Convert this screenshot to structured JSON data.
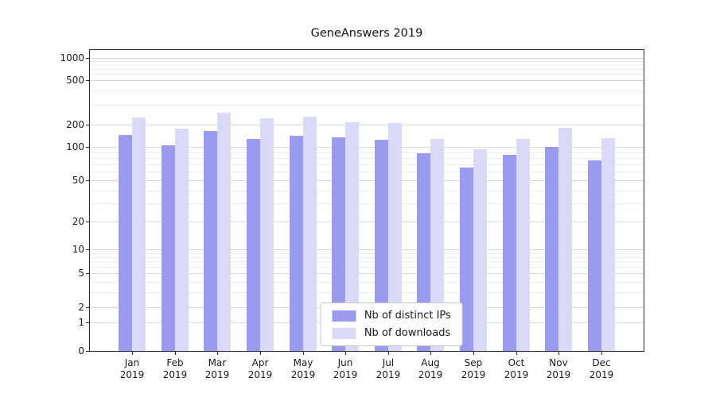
{
  "title": "GeneAnswers 2019",
  "chart_data": {
    "type": "bar",
    "title": "GeneAnswers 2019",
    "categories": [
      "Jan",
      "Feb",
      "Mar",
      "Apr",
      "May",
      "Jun",
      "Jul",
      "Aug",
      "Sep",
      "Oct",
      "Nov",
      "Dec"
    ],
    "year": "2019",
    "series": [
      {
        "name": "Nb of distinct IPs",
        "color": "#9a9aee",
        "values": [
          145,
          105,
          165,
          130,
          140,
          135,
          125,
          88,
          65,
          85,
          100,
          76
        ]
      },
      {
        "name": "Nb of downloads",
        "color": "#d9d9f8",
        "values": [
          230,
          175,
          255,
          225,
          235,
          210,
          205,
          130,
          95,
          128,
          180,
          133
        ]
      }
    ],
    "yscale": "symlog",
    "yticks": [
      0,
      1,
      2,
      5,
      10,
      20,
      50,
      100,
      200,
      500,
      1000
    ],
    "ylim": [
      0,
      1150
    ],
    "grid": true,
    "legend_position": "lower center"
  }
}
